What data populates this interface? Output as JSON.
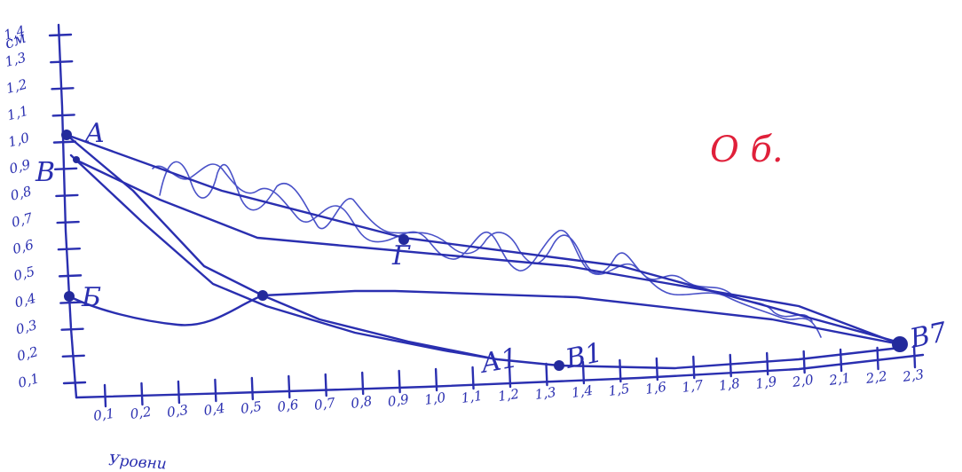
{
  "x_ticks": [
    "0,1",
    "0,2",
    "0,3",
    "0,4",
    "0,5",
    "0,6",
    "0,7",
    "0,8",
    "0,9",
    "1,0",
    "1,1",
    "1,2",
    "1,3",
    "1,4",
    "1,5",
    "1,6",
    "1,7",
    "1,8",
    "1,9",
    "2,0",
    "2,1",
    "2,2",
    "2,3"
  ],
  "y_ticks": [
    "1,4",
    "1,3",
    "1,2",
    "1,1",
    "1,0",
    "0,9",
    "0,8",
    "0,7",
    "0,6",
    "0,5",
    "0,4",
    "0,3",
    "0,2",
    "0,1"
  ],
  "x_axis_label": "Уровни",
  "y_axis_label": "см",
  "points": {
    "A": "A",
    "B": "Б",
    "C": "В",
    "G": "Г",
    "A1": "А1",
    "B1": "В1",
    "B7": "В7"
  },
  "note": "О б.",
  "colors": {
    "ink": "#2a2fb0",
    "note": "#e0203a"
  }
}
